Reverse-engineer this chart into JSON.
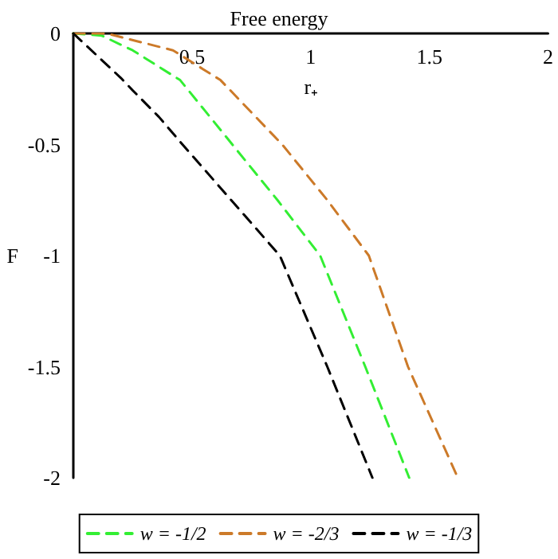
{
  "chart_data": {
    "type": "line",
    "title": "Free energy",
    "xlabel": "r₊",
    "ylabel": "F",
    "xlim": [
      0,
      2
    ],
    "ylim": [
      -2,
      0
    ],
    "xticks": [
      0.5,
      1,
      1.5,
      2
    ],
    "yticks": [
      0,
      -0.5,
      -1,
      -1.5,
      -2
    ],
    "marker": "none",
    "line_style": "dashed",
    "legend": "bottom",
    "grid": false,
    "series": [
      {
        "name": "w = -1/2",
        "color": "#33ee33",
        "x": [
          0,
          0.12,
          0.25,
          0.45,
          0.67,
          0.86,
          1.04,
          1.23,
          1.415
        ],
        "values": [
          0,
          -0.01,
          -0.076,
          -0.21,
          -0.5,
          -0.75,
          -1,
          -1.5,
          -2
        ]
      },
      {
        "name": "w = -2/3",
        "color": "#cc7a29",
        "x": [
          0,
          0.14,
          0.42,
          0.62,
          0.88,
          1.07,
          1.245,
          1.41,
          1.62
        ],
        "values": [
          0,
          0,
          -0.076,
          -0.21,
          -0.5,
          -0.75,
          -1,
          -1.5,
          -2
        ]
      },
      {
        "name": "w = -1/3",
        "color": "#000000",
        "x": [
          0,
          0.2,
          0.25,
          0.36,
          0.46,
          0.87,
          1.07,
          1.26
        ],
        "values": [
          0,
          -0.2,
          -0.256,
          -0.375,
          -0.5,
          -1,
          -1.5,
          -2
        ]
      }
    ]
  }
}
